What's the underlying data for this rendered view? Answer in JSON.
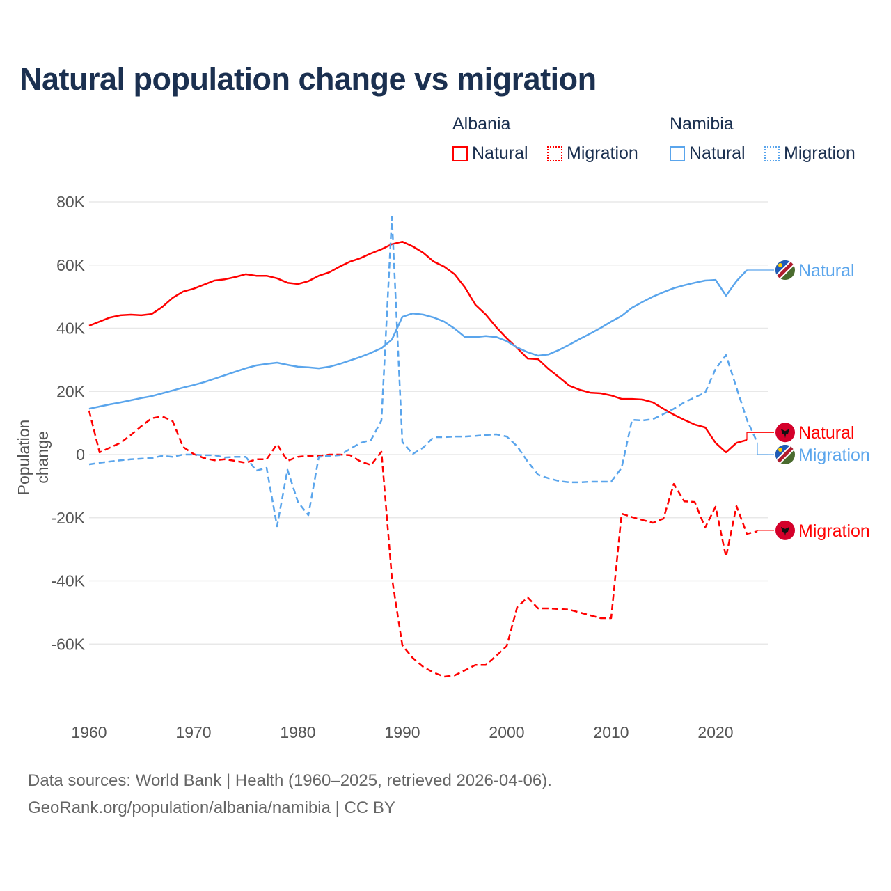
{
  "chart_data": {
    "type": "line",
    "title": "Natural population change vs migration",
    "ylabel": "Population change",
    "xlabel": "",
    "ylim": [
      -80000,
      80000
    ],
    "xlim": [
      1960,
      2025
    ],
    "x_ticks": [
      1960,
      1970,
      1980,
      1990,
      2000,
      2010,
      2020
    ],
    "x_tick_labels": [
      "1960",
      "1970",
      "1980",
      "1990",
      "2000",
      "2010",
      "2020"
    ],
    "y_ticks": [
      80000,
      60000,
      40000,
      20000,
      0,
      -20000,
      -40000,
      -60000
    ],
    "y_tick_labels": [
      "80K",
      "60K",
      "40K",
      "20K",
      "0",
      "-20K",
      "-40K",
      "-60K"
    ],
    "grid": true,
    "start_year": 1960,
    "legend_groups": [
      {
        "name": "Albania",
        "items": [
          "Natural",
          "Migration"
        ]
      },
      {
        "name": "Namibia",
        "items": [
          "Natural",
          "Migration"
        ]
      }
    ],
    "series": [
      {
        "name": "Albania Natural",
        "country": "Albania",
        "kind": "Natural",
        "color": "#ff0000",
        "dash": false,
        "values": [
          40.8,
          42.1,
          43.4,
          44.1,
          44.3,
          44.1,
          44.5,
          46.7,
          49.6,
          51.6,
          52.5,
          53.8,
          55.1,
          55.5,
          56.2,
          57.1,
          56.6,
          56.6,
          55.8,
          54.4,
          54.0,
          54.9,
          56.6,
          57.7,
          59.5,
          61.1,
          62.2,
          63.7,
          65.0,
          66.6,
          67.4,
          65.9,
          63.9,
          61.1,
          59.5,
          57.1,
          52.9,
          47.4,
          44.3,
          40.3,
          36.8,
          33.7,
          30.4,
          30.2,
          27.1,
          24.5,
          21.8,
          20.5,
          19.6,
          19.4,
          18.7,
          17.6,
          17.6,
          17.4,
          16.5,
          14.5,
          12.6,
          11.0,
          9.5,
          8.6,
          3.7,
          0.7,
          3.7,
          4.6
        ],
        "end_label": "Natural",
        "label_value": 7.0
      },
      {
        "name": "Albania Migration",
        "country": "Albania",
        "kind": "Migration",
        "color": "#ff0000",
        "dash": true,
        "values": [
          13.9,
          0.7,
          2.2,
          3.7,
          6.2,
          9.0,
          11.5,
          12.1,
          10.6,
          2.4,
          0.2,
          -1.1,
          -1.8,
          -1.5,
          -2.0,
          -2.6,
          -1.5,
          -1.5,
          3.3,
          -2.0,
          -0.7,
          -0.4,
          -0.4,
          0,
          0,
          -0.2,
          -2.2,
          -3.3,
          0.9,
          -39.0,
          -60.4,
          -64.4,
          -67.2,
          -69.0,
          -70.3,
          -69.9,
          -68.3,
          -66.6,
          -66.6,
          -63.7,
          -60.6,
          -48.3,
          -45.2,
          -48.7,
          -48.7,
          -48.9,
          -49.1,
          -50.0,
          -50.9,
          -51.8,
          -51.8,
          -18.7,
          -19.8,
          -20.7,
          -21.6,
          -20.3,
          -9.3,
          -14.8,
          -15.0,
          -23.1,
          -16.5,
          -32.4,
          -16.3,
          -25.1,
          -24.3
        ],
        "end_label": "Migration",
        "label_value": -24.0
      },
      {
        "name": "Namibia Natural",
        "country": "Namibia",
        "kind": "Natural",
        "color": "#5aa5ec",
        "dash": false,
        "values": [
          14.5,
          15.2,
          15.9,
          16.5,
          17.2,
          17.9,
          18.5,
          19.4,
          20.3,
          21.2,
          22.0,
          22.9,
          24.0,
          25.1,
          26.2,
          27.3,
          28.2,
          28.7,
          29.1,
          28.4,
          27.8,
          27.6,
          27.3,
          27.8,
          28.7,
          29.8,
          30.9,
          32.2,
          33.7,
          36.4,
          43.6,
          44.7,
          44.3,
          43.4,
          42.1,
          39.9,
          37.2,
          37.2,
          37.5,
          37.2,
          35.9,
          33.9,
          32.4,
          31.3,
          31.7,
          33.1,
          34.8,
          36.6,
          38.3,
          40.1,
          42.1,
          43.9,
          46.5,
          48.3,
          50.0,
          51.4,
          52.7,
          53.6,
          54.4,
          55.1,
          55.3,
          50.3,
          54.9,
          58.4
        ],
        "end_label": "Natural",
        "label_value": 58.4
      },
      {
        "name": "Namibia Migration",
        "country": "Namibia",
        "kind": "Migration",
        "color": "#5aa5ec",
        "dash": true,
        "values": [
          -3.1,
          -2.6,
          -2.2,
          -1.8,
          -1.5,
          -1.3,
          -1.1,
          -0.4,
          -0.7,
          0,
          0,
          -0.2,
          -0.2,
          -0.9,
          -0.7,
          -0.7,
          -5.1,
          -4.2,
          -22.7,
          -4.8,
          -15.0,
          -19.2,
          -0.7,
          -0.4,
          -0.2,
          1.8,
          3.7,
          4.6,
          10.8,
          75.2,
          4.0,
          0.2,
          2.2,
          5.5,
          5.5,
          5.7,
          5.7,
          5.9,
          6.2,
          6.4,
          5.7,
          2.6,
          -2.2,
          -6.4,
          -7.5,
          -8.4,
          -8.8,
          -8.8,
          -8.6,
          -8.6,
          -8.6,
          -4.2,
          11.0,
          10.8,
          11.2,
          12.8,
          14.5,
          16.5,
          18.1,
          19.6,
          27.1,
          31.5,
          21.2,
          11.0,
          3.8
        ],
        "end_label": "Migration",
        "label_value": 0
      }
    ],
    "value_unit": "thousands"
  },
  "title": "Natural population change vs migration",
  "legend": {
    "albania": "Albania",
    "namibia": "Namibia",
    "natural": "Natural",
    "migration": "Migration"
  },
  "footer": {
    "line1": "Data sources: World Bank | Health (1960–2025, retrieved 2026-04-06).",
    "line2": "GeoRank.org/population/albania/namibia | CC BY"
  }
}
